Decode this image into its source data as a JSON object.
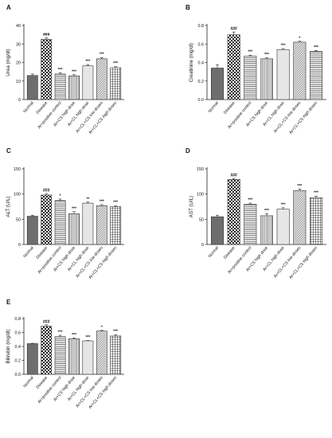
{
  "colors": {
    "ink": "#222222",
    "normal_fill": "#6e6e6e",
    "light_fill": "#e6e6e6",
    "diag_fill": "#cfcfcf",
    "background": "#ffffff"
  },
  "chart_data": [
    {
      "panel": "A",
      "type": "bar",
      "ylabel": "Urea (mg/dl)",
      "ylim": [
        0,
        40
      ],
      "yticks": [
        "0",
        "10",
        "20",
        "30",
        "40"
      ],
      "categories": [
        "Normal",
        "Disease",
        "Ar+positive control",
        "Ar+CS high dose",
        "Ar+CL high dose",
        "Ar+CL+CS low doses",
        "Ar+CL+CS high doses"
      ],
      "values": [
        13,
        32.5,
        13.8,
        12.8,
        18.2,
        22,
        17.2
      ],
      "errors": [
        0.8,
        0.8,
        0.6,
        0.6,
        0.7,
        0.7,
        0.6
      ],
      "annotations": [
        "",
        "###",
        "***",
        "***",
        "***",
        "***",
        "***"
      ],
      "patterns": [
        "solid-dark",
        "checker",
        "hlines",
        "vlines",
        "solid-light",
        "diag",
        "grid"
      ]
    },
    {
      "panel": "B",
      "type": "bar",
      "ylabel": "Creatinine (mg/dl)",
      "ylim": [
        0,
        0.8
      ],
      "yticks": [
        "0.0",
        "0.2",
        "0.4",
        "0.6",
        "0.8"
      ],
      "categories": [
        "Normal",
        "Disease",
        "Ar+positive control",
        "Ar+CS high dose",
        "Ar+CL high dose",
        "Ar+CL+CS low doses",
        "Ar+CL+CS high doses"
      ],
      "values": [
        0.34,
        0.7,
        0.47,
        0.44,
        0.54,
        0.62,
        0.52
      ],
      "errors": [
        0.035,
        0.03,
        0.01,
        0.01,
        0.01,
        0.01,
        0.01
      ],
      "annotations": [
        "",
        "###",
        "***",
        "***",
        "***",
        "*",
        "***"
      ],
      "patterns": [
        "solid-dark",
        "checker",
        "hlines",
        "vlines",
        "solid-light",
        "diag",
        "hlines"
      ]
    },
    {
      "panel": "C",
      "type": "bar",
      "ylabel": "ALT (U/L)",
      "ylim": [
        0,
        150
      ],
      "yticks": [
        "0",
        "50",
        "100",
        "150"
      ],
      "categories": [
        "Normal",
        "Disease",
        "Ar+positive control",
        "Ar+CS high dose",
        "Ar+CL high dose",
        "Ar+CL+CS low doses",
        "Ar+CL+CS high doses"
      ],
      "values": [
        56,
        98,
        87,
        61,
        82,
        77,
        75
      ],
      "errors": [
        2,
        3,
        3,
        4,
        2,
        2,
        2
      ],
      "annotations": [
        "",
        "###",
        "*",
        "***",
        "**",
        "***",
        "***"
      ],
      "patterns": [
        "solid-dark",
        "checker",
        "hlines",
        "vlines",
        "solid-light",
        "diag",
        "grid"
      ]
    },
    {
      "panel": "D",
      "type": "bar",
      "ylabel": "AST (U/L)",
      "ylim": [
        0,
        150
      ],
      "yticks": [
        "0",
        "50",
        "100",
        "150"
      ],
      "categories": [
        "Normal",
        "Disease",
        "Ar+positive control",
        "Ar+CS high dose",
        "Ar+CL high dose",
        "Ar+CL+CS low doses",
        "Ar+CL+CS high doses"
      ],
      "values": [
        55,
        129,
        80,
        57,
        70,
        107,
        93
      ],
      "errors": [
        3,
        2,
        2,
        4,
        3,
        3,
        3
      ],
      "annotations": [
        "",
        "###",
        "***",
        "***",
        "***",
        "***",
        "***"
      ],
      "patterns": [
        "solid-dark",
        "checker",
        "hlines",
        "vlines",
        "solid-light",
        "diag",
        "grid"
      ]
    },
    {
      "panel": "E",
      "type": "bar",
      "ylabel": "Bilirubin (mg/dl)",
      "ylim": [
        0,
        0.8
      ],
      "yticks": [
        "0.0",
        "0.2",
        "0.4",
        "0.6",
        "0.8"
      ],
      "categories": [
        "Normal",
        "Disease",
        "Ar+positive control",
        "Ar+CS high dose",
        "Ar+CL high dose",
        "Ar+CL+CS low doses",
        "Ar+CL+CS high doses"
      ],
      "values": [
        0.44,
        0.69,
        0.54,
        0.51,
        0.48,
        0.62,
        0.55
      ],
      "errors": [
        0.005,
        0.02,
        0.02,
        0.01,
        0.005,
        0.01,
        0.02
      ],
      "annotations": [
        "",
        "###",
        "***",
        "***",
        "***",
        "*",
        "***"
      ],
      "patterns": [
        "solid-dark",
        "checker",
        "hlines",
        "vlines",
        "solid-light",
        "diag",
        "grid"
      ]
    }
  ]
}
